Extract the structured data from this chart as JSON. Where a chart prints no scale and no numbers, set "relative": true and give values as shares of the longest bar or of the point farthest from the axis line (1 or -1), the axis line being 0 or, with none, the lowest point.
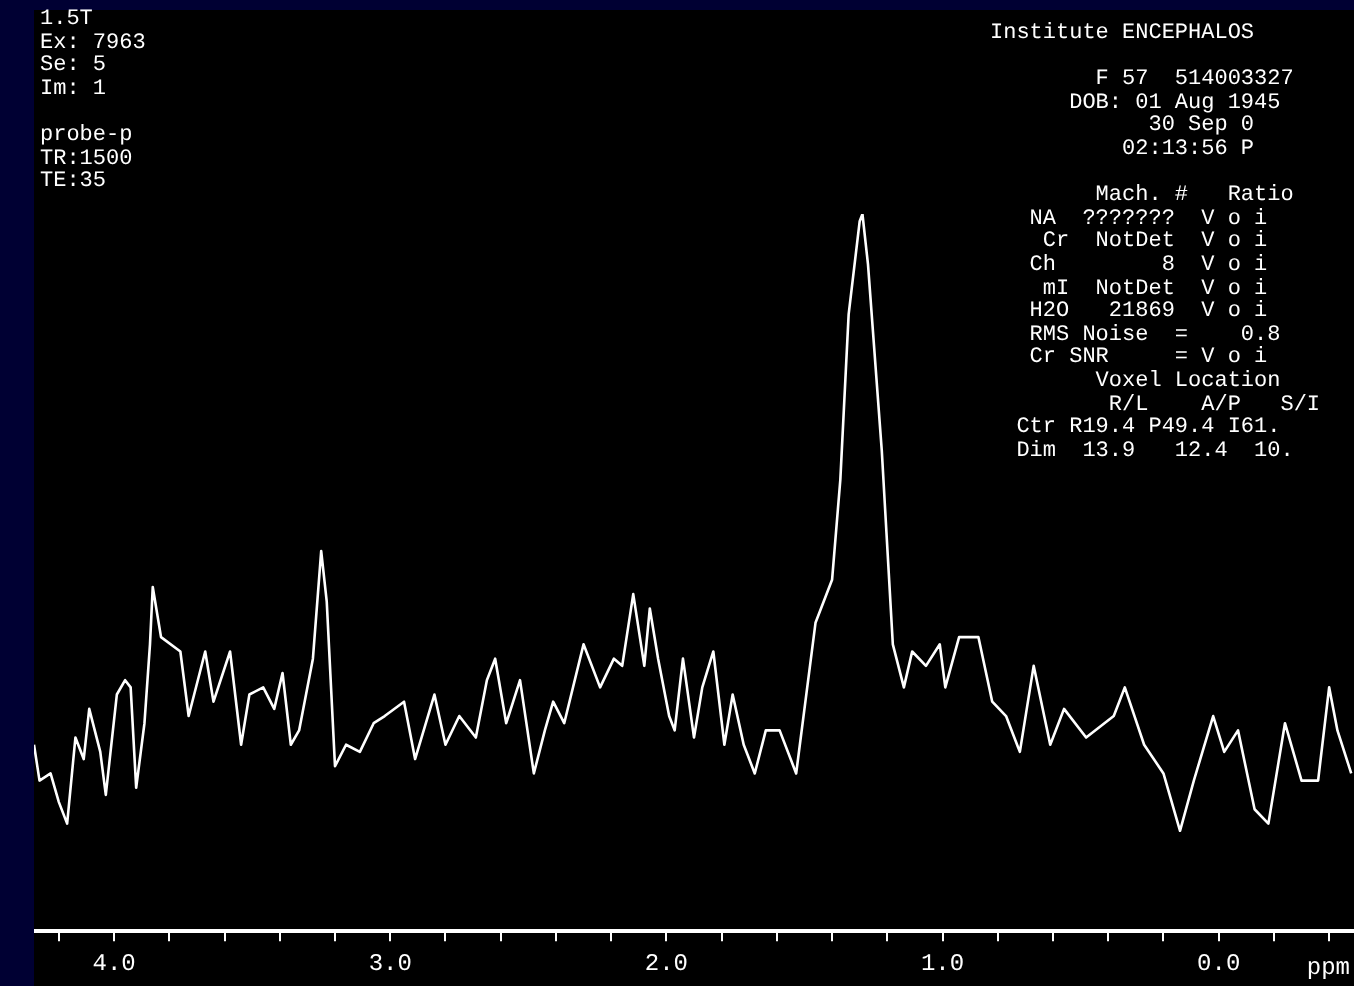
{
  "chart_data": {
    "type": "line",
    "relative": true,
    "xlabel": "ppm",
    "xlim": [
      4.29,
      -0.49
    ],
    "xticks": [
      {
        "value": 4.2,
        "label": null
      },
      {
        "value": 4,
        "label": "4.0"
      },
      {
        "value": 3.8,
        "label": null
      },
      {
        "value": 3.6,
        "label": null
      },
      {
        "value": 3.4,
        "label": null
      },
      {
        "value": 3.2,
        "label": null
      },
      {
        "value": 3,
        "label": "3.0"
      },
      {
        "value": 2.8,
        "label": null
      },
      {
        "value": 2.6,
        "label": null
      },
      {
        "value": 2.4,
        "label": null
      },
      {
        "value": 2.2,
        "label": null
      },
      {
        "value": 2,
        "label": "2.0"
      },
      {
        "value": 1.8,
        "label": null
      },
      {
        "value": 1.6,
        "label": null
      },
      {
        "value": 1.4,
        "label": null
      },
      {
        "value": 1.2,
        "label": null
      },
      {
        "value": 1,
        "label": "1.0"
      },
      {
        "value": 0.8,
        "label": null
      },
      {
        "value": 0.6,
        "label": null
      },
      {
        "value": 0.4,
        "label": null
      },
      {
        "value": 0.2,
        "label": null
      },
      {
        "value": 0,
        "label": "0.0"
      },
      {
        "value": -0.2,
        "label": null
      },
      {
        "value": -0.4,
        "label": null
      }
    ],
    "grid": false,
    "legend": false,
    "annotations": [
      "1.5T\nEx: 7963\nSe: 5\nIm: 1\n\nprobe-p\nTR:1500\nTE:35",
      "Institute ENCEPHALOS\n\n        F 57  514003327\n      DOB: 01 Aug 1945\n            30 Sep 0\n          02:13:56 P\n\n        Mach. #   Ratio\n   NA  ???????  V o i\n    Cr  NotDet  V o i\n   Ch        8  V o i\n    mI  NotDet  V o i\n   H2O   21869  V o i\n   RMS Noise  =    0.8\n   Cr SNR     = V o i\n        Voxel Location\n         R/L    A/P   S/I\n  Ctr R19.4 P49.4 I61.\n  Dim  13.9   12.4  10."
    ],
    "series": [
      {
        "color": "#ffffff",
        "x": [
          4.29,
          4.27,
          4.23,
          4.2,
          4.17,
          4.14,
          4.11,
          4.09,
          4.05,
          4.03,
          3.99,
          3.96,
          3.94,
          3.92,
          3.89,
          3.87,
          3.86,
          3.83,
          3.76,
          3.73,
          3.67,
          3.64,
          3.58,
          3.54,
          3.51,
          3.46,
          3.42,
          3.39,
          3.36,
          3.33,
          3.28,
          3.25,
          3.23,
          3.2,
          3.16,
          3.11,
          3.06,
          3.02,
          2.95,
          2.91,
          2.84,
          2.8,
          2.75,
          2.69,
          2.65,
          2.62,
          2.58,
          2.53,
          2.48,
          2.44,
          2.41,
          2.37,
          2.3,
          2.24,
          2.19,
          2.16,
          2.12,
          2.08,
          2.06,
          2.03,
          1.99,
          1.97,
          1.94,
          1.9,
          1.87,
          1.83,
          1.79,
          1.76,
          1.72,
          1.68,
          1.64,
          1.59,
          1.53,
          1.46,
          1.4,
          1.37,
          1.34,
          1.3,
          1.29,
          1.27,
          1.22,
          1.18,
          1.14,
          1.11,
          1.06,
          1.01,
          0.99,
          0.94,
          0.87,
          0.82,
          0.77,
          0.72,
          0.67,
          0.61,
          0.56,
          0.48,
          0.38,
          0.34,
          0.27,
          0.2,
          0.14,
          0.09,
          0.02,
          -0.02,
          -0.07,
          -0.13,
          -0.18,
          -0.24,
          -0.3,
          -0.36,
          -0.4,
          -0.43,
          -0.48
        ],
        "values": [
          0.26,
          0.21,
          0.22,
          0.18,
          0.15,
          0.27,
          0.24,
          0.31,
          0.25,
          0.19,
          0.33,
          0.35,
          0.34,
          0.2,
          0.29,
          0.4,
          0.48,
          0.41,
          0.39,
          0.3,
          0.39,
          0.32,
          0.39,
          0.26,
          0.33,
          0.34,
          0.31,
          0.36,
          0.26,
          0.28,
          0.38,
          0.53,
          0.46,
          0.23,
          0.26,
          0.25,
          0.29,
          0.3,
          0.32,
          0.24,
          0.33,
          0.26,
          0.3,
          0.27,
          0.35,
          0.38,
          0.29,
          0.35,
          0.22,
          0.28,
          0.32,
          0.29,
          0.4,
          0.34,
          0.38,
          0.37,
          0.47,
          0.37,
          0.45,
          0.38,
          0.3,
          0.28,
          0.38,
          0.27,
          0.34,
          0.39,
          0.26,
          0.33,
          0.26,
          0.22,
          0.28,
          0.28,
          0.22,
          0.43,
          0.49,
          0.63,
          0.86,
          0.99,
          1,
          0.93,
          0.67,
          0.4,
          0.34,
          0.39,
          0.37,
          0.4,
          0.34,
          0.41,
          0.41,
          0.32,
          0.3,
          0.25,
          0.37,
          0.26,
          0.31,
          0.27,
          0.3,
          0.34,
          0.26,
          0.22,
          0.14,
          0.21,
          0.3,
          0.25,
          0.28,
          0.17,
          0.15,
          0.29,
          0.21,
          0.21,
          0.34,
          0.28,
          0.22
        ]
      }
    ]
  }
}
